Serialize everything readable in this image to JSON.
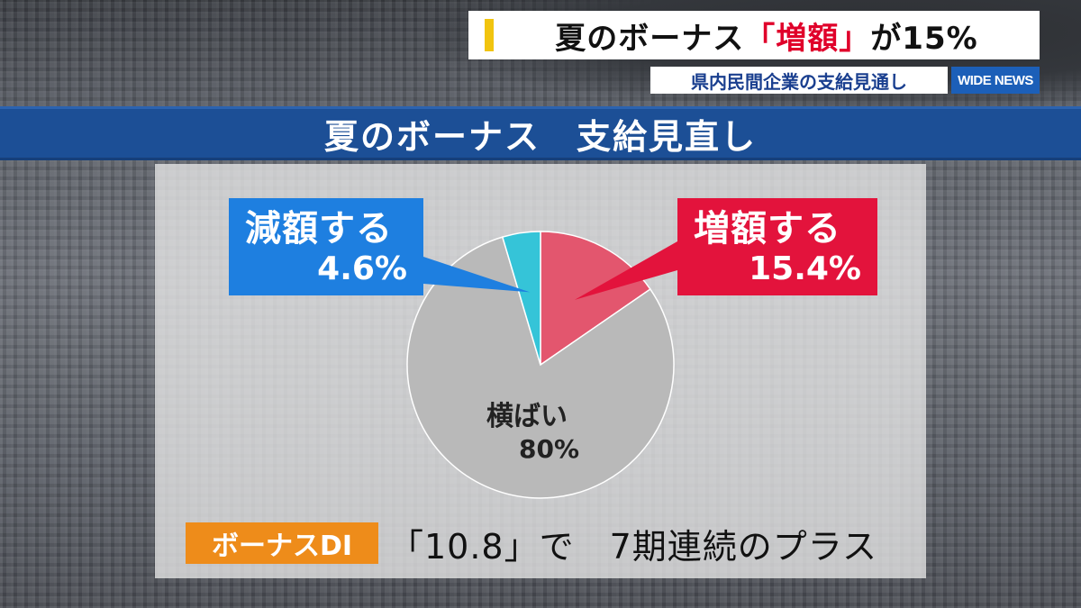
{
  "caption": {
    "main_prefix": "夏のボーナス",
    "main_highlight": "「増額」",
    "main_suffix": "が15%",
    "sub": "県内民間企業の支給見通し",
    "logo": "WIDE NEWS"
  },
  "banner_title": "夏のボーナス　支給見直し",
  "chart_data": {
    "type": "pie",
    "title": "夏のボーナス　支給見直し",
    "slices": [
      {
        "label": "増額する",
        "value": 15.4,
        "display": "15.4%",
        "color": "#e3566e"
      },
      {
        "label": "横ばい",
        "value": 80,
        "display": "80%",
        "color": "#b9b9b9"
      },
      {
        "label": "減額する",
        "value": 4.6,
        "display": "4.6%",
        "color": "#35c4d8"
      }
    ],
    "start": "12 o'clock, clockwise"
  },
  "callouts": {
    "decrease": {
      "name": "減額する",
      "pct": "4.6%",
      "color": "#1e7fe0"
    },
    "increase": {
      "name": "増額する",
      "pct": "15.4%",
      "color": "#e3133c"
    },
    "flat": {
      "name": "横ばい",
      "pct": "80%"
    }
  },
  "footer": {
    "tag": "ボーナスDI",
    "text": "「10.8」で　7期連続のプラス",
    "tag_color": "#ee8c1a"
  }
}
